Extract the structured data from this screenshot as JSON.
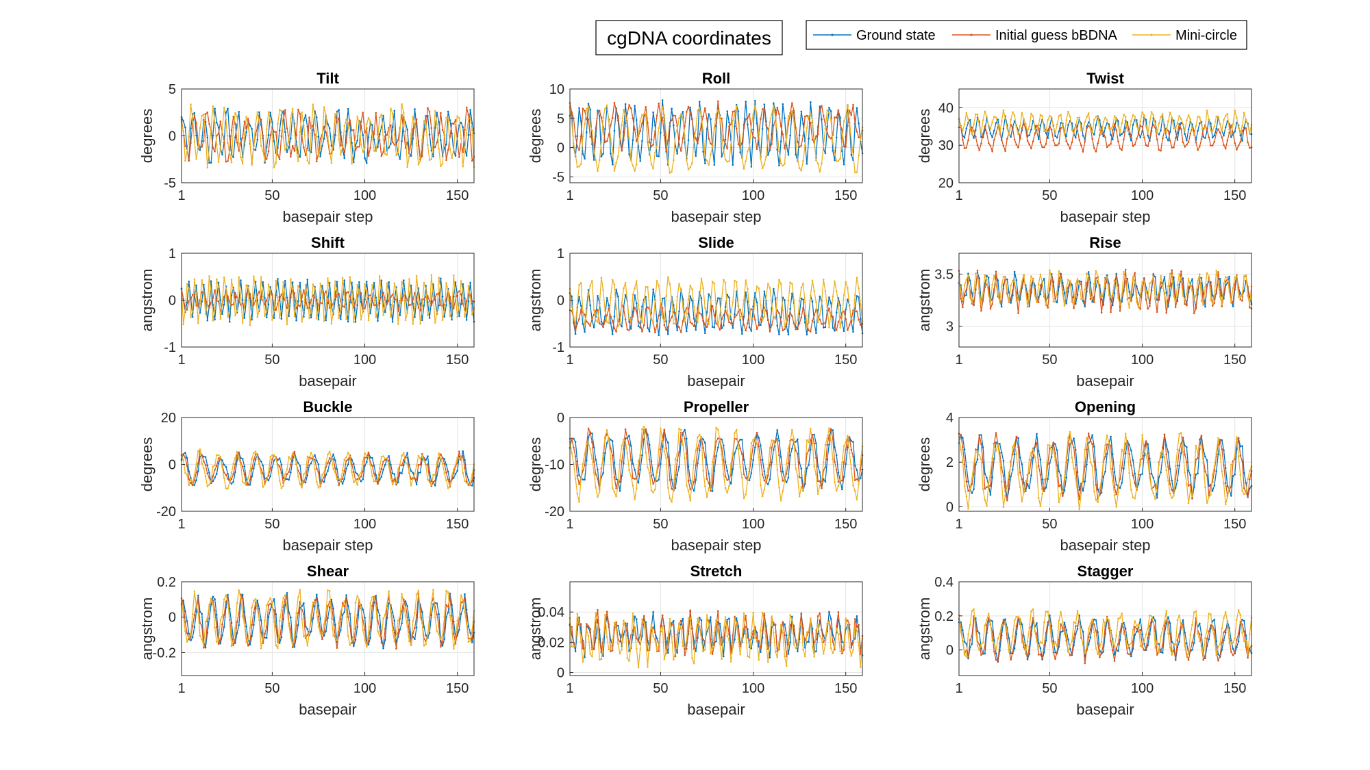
{
  "figure": {
    "title": "cgDNA coordinates"
  },
  "legend": {
    "placement": "top-right",
    "entries": [
      {
        "name": "Ground state",
        "color": "#0072BD"
      },
      {
        "name": "Initial guess bBDNA",
        "color": "#D95319"
      },
      {
        "name": "Mini-circle",
        "color": "#EDB120"
      }
    ]
  },
  "chart_data": [
    {
      "type": "line",
      "title": "Tilt",
      "xlabel": "basepair step",
      "ylabel": "degrees",
      "xlim": [
        1,
        159
      ],
      "ylim": [
        -5,
        5
      ],
      "xticks": [
        "1",
        "50",
        "100",
        "150"
      ],
      "xtick_values": [
        1,
        50,
        100,
        150
      ],
      "yticks": [
        "-5",
        "0",
        "5"
      ],
      "ytick_values": [
        -5,
        0,
        5
      ],
      "grid": true,
      "series_params": [
        {
          "name": "Ground state",
          "base": 0,
          "amp": 2.2,
          "period": 6,
          "noise": 1.0,
          "seed": 1
        },
        {
          "name": "Initial guess bBDNA",
          "base": 0,
          "amp": 2.0,
          "period": 7,
          "noise": 1.2,
          "seed": 2
        },
        {
          "name": "Mini-circle",
          "base": 0,
          "amp": 2.6,
          "period": 6,
          "noise": 1.0,
          "seed": 3
        }
      ]
    },
    {
      "type": "line",
      "title": "Roll",
      "xlabel": "basepair step",
      "ylabel": "degrees",
      "xlim": [
        1,
        159
      ],
      "ylim": [
        -6,
        10
      ],
      "xticks": [
        "1",
        "50",
        "100",
        "150"
      ],
      "xtick_values": [
        1,
        50,
        100,
        150
      ],
      "yticks": [
        "-5",
        "0",
        "5",
        "10"
      ],
      "ytick_values": [
        -5,
        0,
        5,
        10
      ],
      "grid": true,
      "series_params": [
        {
          "name": "Ground state",
          "base": 2.5,
          "amp": 4.5,
          "period": 5,
          "noise": 1.5,
          "seed": 4
        },
        {
          "name": "Initial guess bBDNA",
          "base": 3.5,
          "amp": 3.0,
          "period": 8,
          "noise": 1.5,
          "seed": 5
        },
        {
          "name": "Mini-circle",
          "base": 1.5,
          "amp": 5.0,
          "period": 10,
          "noise": 1.2,
          "seed": 6
        }
      ]
    },
    {
      "type": "line",
      "title": "Twist",
      "xlabel": "basepair step",
      "ylabel": "degrees",
      "xlim": [
        1,
        159
      ],
      "ylim": [
        20,
        45
      ],
      "xticks": [
        "1",
        "50",
        "100",
        "150"
      ],
      "xtick_values": [
        1,
        50,
        100,
        150
      ],
      "yticks": [
        "20",
        "30",
        "40"
      ],
      "ytick_values": [
        20,
        30,
        40
      ],
      "grid": true,
      "series_params": [
        {
          "name": "Ground state",
          "base": 34.5,
          "amp": 2.5,
          "period": 5,
          "noise": 1.0,
          "seed": 7
        },
        {
          "name": "Initial guess bBDNA",
          "base": 32,
          "amp": 3.0,
          "period": 7,
          "noise": 1.0,
          "seed": 8
        },
        {
          "name": "Mini-circle",
          "base": 36,
          "amp": 2.5,
          "period": 5,
          "noise": 1.0,
          "seed": 9
        }
      ]
    },
    {
      "type": "line",
      "title": "Shift",
      "xlabel": "basepair",
      "ylabel": "angstrom",
      "xlim": [
        1,
        159
      ],
      "ylim": [
        -1,
        1
      ],
      "xticks": [
        "1",
        "50",
        "100",
        "150"
      ],
      "xtick_values": [
        1,
        50,
        100,
        150
      ],
      "yticks": [
        "-1",
        "0",
        "1"
      ],
      "ytick_values": [
        -1,
        0,
        1
      ],
      "grid": true,
      "series_params": [
        {
          "name": "Ground state",
          "base": 0,
          "amp": 0.35,
          "period": 4,
          "noise": 0.12,
          "seed": 10
        },
        {
          "name": "Initial guess bBDNA",
          "base": 0,
          "amp": 0.15,
          "period": 6,
          "noise": 0.1,
          "seed": 11
        },
        {
          "name": "Mini-circle",
          "base": 0,
          "amp": 0.45,
          "period": 4,
          "noise": 0.12,
          "seed": 12
        }
      ]
    },
    {
      "type": "line",
      "title": "Slide",
      "xlabel": "basepair",
      "ylabel": "angstrom",
      "xlim": [
        1,
        159
      ],
      "ylim": [
        -1,
        1
      ],
      "xticks": [
        "1",
        "50",
        "100",
        "150"
      ],
      "xtick_values": [
        1,
        50,
        100,
        150
      ],
      "yticks": [
        "-1",
        "0",
        "1"
      ],
      "ytick_values": [
        -1,
        0,
        1
      ],
      "grid": true,
      "series_params": [
        {
          "name": "Ground state",
          "base": -0.25,
          "amp": 0.4,
          "period": 5,
          "noise": 0.12,
          "seed": 13
        },
        {
          "name": "Initial guess bBDNA",
          "base": -0.4,
          "amp": 0.2,
          "period": 7,
          "noise": 0.1,
          "seed": 14
        },
        {
          "name": "Mini-circle",
          "base": -0.05,
          "amp": 0.45,
          "period": 6,
          "noise": 0.12,
          "seed": 15
        }
      ]
    },
    {
      "type": "line",
      "title": "Rise",
      "xlabel": "basepair",
      "ylabel": "angstrom",
      "xlim": [
        1,
        159
      ],
      "ylim": [
        2.8,
        3.7
      ],
      "xticks": [
        "1",
        "50",
        "100",
        "150"
      ],
      "xtick_values": [
        1,
        50,
        100,
        150
      ],
      "yticks": [
        "3",
        "3.5"
      ],
      "ytick_values": [
        3,
        3.5
      ],
      "grid": true,
      "series_params": [
        {
          "name": "Ground state",
          "base": 3.35,
          "amp": 0.12,
          "period": 5,
          "noise": 0.06,
          "seed": 16
        },
        {
          "name": "Initial guess bBDNA",
          "base": 3.33,
          "amp": 0.14,
          "period": 5,
          "noise": 0.08,
          "seed": 17
        },
        {
          "name": "Mini-circle",
          "base": 3.36,
          "amp": 0.13,
          "period": 5,
          "noise": 0.06,
          "seed": 18
        }
      ]
    },
    {
      "type": "line",
      "title": "Buckle",
      "xlabel": "basepair step",
      "ylabel": "degrees",
      "xlim": [
        1,
        159
      ],
      "ylim": [
        -20,
        20
      ],
      "xticks": [
        "1",
        "50",
        "100",
        "150"
      ],
      "xtick_values": [
        1,
        50,
        100,
        150
      ],
      "yticks": [
        "-20",
        "0",
        "20"
      ],
      "ytick_values": [
        -20,
        0,
        20
      ],
      "grid": true,
      "series_params": [
        {
          "name": "Ground state",
          "base": -2,
          "amp": 6,
          "period": 10,
          "noise": 2.0,
          "seed": 19
        },
        {
          "name": "Initial guess bBDNA",
          "base": -2,
          "amp": 6,
          "period": 10,
          "noise": 2.0,
          "seed": 19
        },
        {
          "name": "Mini-circle",
          "base": -2,
          "amp": 6.5,
          "period": 10,
          "noise": 2.2,
          "seed": 20
        }
      ]
    },
    {
      "type": "line",
      "title": "Propeller",
      "xlabel": "basepair step",
      "ylabel": "degrees",
      "xlim": [
        1,
        159
      ],
      "ylim": [
        -20,
        0
      ],
      "xticks": [
        "1",
        "50",
        "100",
        "150"
      ],
      "xtick_values": [
        1,
        50,
        100,
        150
      ],
      "yticks": [
        "-20",
        "-10",
        "0"
      ],
      "ytick_values": [
        -20,
        -10,
        0
      ],
      "grid": true,
      "series_params": [
        {
          "name": "Ground state",
          "base": -9,
          "amp": 5.5,
          "period": 10,
          "noise": 1.5,
          "seed": 21
        },
        {
          "name": "Initial guess bBDNA",
          "base": -9,
          "amp": 5.5,
          "period": 10,
          "noise": 1.5,
          "seed": 21
        },
        {
          "name": "Mini-circle",
          "base": -10,
          "amp": 6.5,
          "period": 10,
          "noise": 1.8,
          "seed": 22
        }
      ]
    },
    {
      "type": "line",
      "title": "Opening",
      "xlabel": "basepair step",
      "ylabel": "degrees",
      "xlim": [
        1,
        159
      ],
      "ylim": [
        -0.2,
        4
      ],
      "xticks": [
        "1",
        "50",
        "100",
        "150"
      ],
      "xtick_values": [
        1,
        50,
        100,
        150
      ],
      "yticks": [
        "0",
        "2",
        "4"
      ],
      "ytick_values": [
        0,
        2,
        4
      ],
      "grid": true,
      "series_params": [
        {
          "name": "Ground state",
          "base": 1.8,
          "amp": 1.2,
          "period": 10,
          "noise": 0.4,
          "seed": 23
        },
        {
          "name": "Initial guess bBDNA",
          "base": 1.8,
          "amp": 1.2,
          "period": 10,
          "noise": 0.4,
          "seed": 23
        },
        {
          "name": "Mini-circle",
          "base": 1.6,
          "amp": 1.3,
          "period": 10,
          "noise": 0.5,
          "seed": 24
        }
      ]
    },
    {
      "type": "line",
      "title": "Shear",
      "xlabel": "basepair",
      "ylabel": "angstrom",
      "xlim": [
        1,
        159
      ],
      "ylim": [
        -0.33,
        0.2
      ],
      "xticks": [
        "1",
        "50",
        "100",
        "150"
      ],
      "xtick_values": [
        1,
        50,
        100,
        150
      ],
      "yticks": [
        "-0.2",
        "0",
        "0.2"
      ],
      "ytick_values": [
        -0.2,
        0,
        0.2
      ],
      "grid": true,
      "series_params": [
        {
          "name": "Ground state",
          "base": -0.02,
          "amp": 0.12,
          "period": 8,
          "noise": 0.04,
          "seed": 25
        },
        {
          "name": "Initial guess bBDNA",
          "base": -0.02,
          "amp": 0.12,
          "period": 8,
          "noise": 0.04,
          "seed": 25
        },
        {
          "name": "Mini-circle",
          "base": -0.01,
          "amp": 0.13,
          "period": 8,
          "noise": 0.05,
          "seed": 26
        }
      ]
    },
    {
      "type": "line",
      "title": "Stretch",
      "xlabel": "basepair",
      "ylabel": "angstrom",
      "xlim": [
        1,
        159
      ],
      "ylim": [
        -0.002,
        0.06
      ],
      "xticks": [
        "1",
        "50",
        "100",
        "150"
      ],
      "xtick_values": [
        1,
        50,
        100,
        150
      ],
      "yticks": [
        "0",
        "0.02",
        "0.04"
      ],
      "ytick_values": [
        0,
        0.02,
        0.04
      ],
      "grid": true,
      "series_params": [
        {
          "name": "Ground state",
          "base": 0.025,
          "amp": 0.01,
          "period": 5,
          "noise": 0.006,
          "seed": 27
        },
        {
          "name": "Initial guess bBDNA",
          "base": 0.026,
          "amp": 0.01,
          "period": 5,
          "noise": 0.006,
          "seed": 28
        },
        {
          "name": "Mini-circle",
          "base": 0.022,
          "amp": 0.012,
          "period": 5,
          "noise": 0.007,
          "seed": 29
        }
      ]
    },
    {
      "type": "line",
      "title": "Stagger",
      "xlabel": "basepair",
      "ylabel": "angstrom",
      "xlim": [
        1,
        159
      ],
      "ylim": [
        -0.15,
        0.4
      ],
      "xticks": [
        "1",
        "50",
        "100",
        "150"
      ],
      "xtick_values": [
        1,
        50,
        100,
        150
      ],
      "yticks": [
        "0",
        "0.2",
        "0.4"
      ],
      "ytick_values": [
        0,
        0.2,
        0.4
      ],
      "grid": true,
      "series_params": [
        {
          "name": "Ground state",
          "base": 0.07,
          "amp": 0.1,
          "period": 8,
          "noise": 0.04,
          "seed": 30
        },
        {
          "name": "Initial guess bBDNA",
          "base": 0.06,
          "amp": 0.1,
          "period": 8,
          "noise": 0.04,
          "seed": 30
        },
        {
          "name": "Mini-circle",
          "base": 0.1,
          "amp": 0.1,
          "period": 8,
          "noise": 0.05,
          "seed": 31
        }
      ]
    }
  ]
}
